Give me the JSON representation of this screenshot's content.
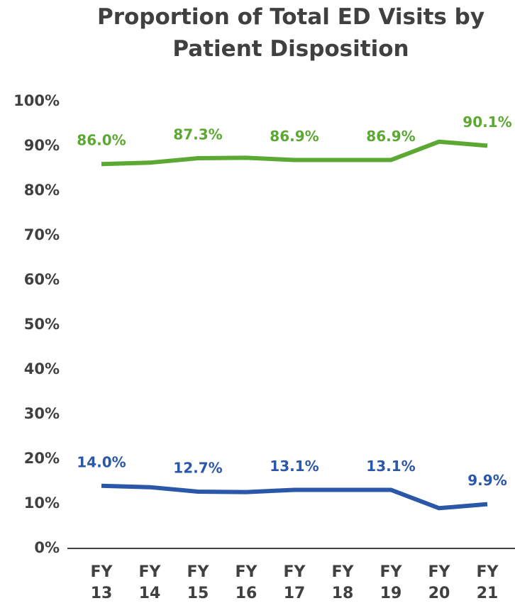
{
  "chart_data": {
    "type": "line",
    "title": "Proportion of Total ED Visits by Patient Disposition",
    "categories": [
      "FY 13",
      "FY 14",
      "FY 15",
      "FY 16",
      "FY 17",
      "FY 18",
      "FY 19",
      "FY 20",
      "FY 21"
    ],
    "series": [
      {
        "color": "#5ba833",
        "values": [
          86.0,
          86.3,
          87.3,
          87.4,
          86.9,
          86.9,
          86.9,
          91.0,
          90.1
        ],
        "value_labels": [
          "86.0%",
          null,
          "87.3%",
          null,
          "86.9%",
          null,
          "86.9%",
          null,
          "90.1%"
        ]
      },
      {
        "color": "#2a57a8",
        "values": [
          14.0,
          13.7,
          12.7,
          12.6,
          13.1,
          13.1,
          13.1,
          9.0,
          9.9
        ],
        "value_labels": [
          "14.0%",
          null,
          "12.7%",
          null,
          "13.1%",
          null,
          "13.1%",
          null,
          "9.9%"
        ]
      }
    ],
    "ylim": [
      0,
      100
    ],
    "yticks": [
      {
        "value": 0,
        "label": "0%"
      },
      {
        "value": 10,
        "label": "10%"
      },
      {
        "value": 20,
        "label": "20%"
      },
      {
        "value": 30,
        "label": "30%"
      },
      {
        "value": 40,
        "label": "40%"
      },
      {
        "value": 50,
        "label": "50%"
      },
      {
        "value": 60,
        "label": "60%"
      },
      {
        "value": 70,
        "label": "70%"
      },
      {
        "value": 80,
        "label": "80%"
      },
      {
        "value": 90,
        "label": "90%"
      },
      {
        "value": 100,
        "label": "100%"
      }
    ],
    "grid": false
  }
}
